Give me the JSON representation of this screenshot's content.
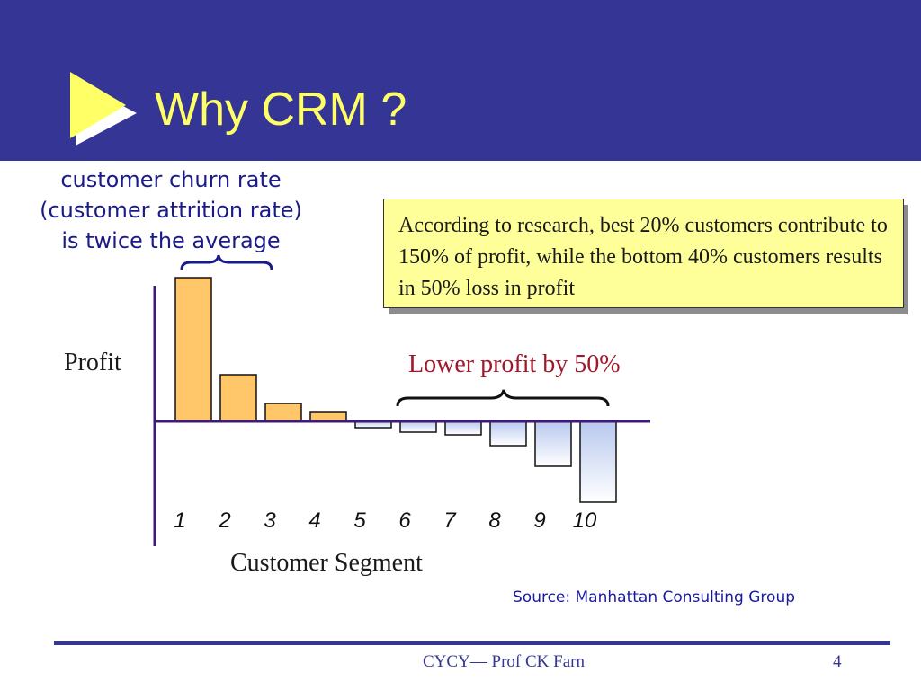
{
  "slide": {
    "title": "Why CRM ?",
    "churn_note": "customer churn rate (customer attrition rate) is twice the average",
    "callout": "According to research, best 20% customers contribute to 150% of profit, while the bottom 40% customers results in 50% loss in profit",
    "lower_profit_note": "Lower profit by 50%",
    "source": "Source:  Manhattan Consulting Group",
    "footer": "CYCY— Prof CK Farn",
    "page_number": "4"
  },
  "colors": {
    "header": "#343594",
    "title": "#ffff66",
    "positive_bar": "#ffc76a",
    "negative_bar_top": "#b8c8ee",
    "negative_bar_bottom": "#ffffff",
    "axis": "#3d1a78"
  },
  "chart_data": {
    "type": "bar",
    "xlabel": "Customer Segment",
    "ylabel": "Profit",
    "categories": [
      "1",
      "2",
      "3",
      "4",
      "5",
      "6",
      "7",
      "8",
      "9",
      "10"
    ],
    "values": [
      160,
      52,
      20,
      10,
      -7,
      -12,
      -15,
      -27,
      -50,
      -90
    ],
    "grid": false,
    "legend": "none"
  }
}
